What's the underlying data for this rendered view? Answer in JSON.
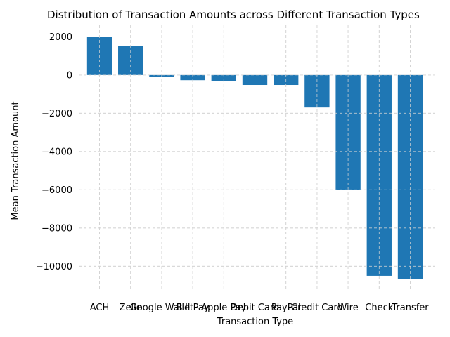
{
  "chart_data": {
    "type": "bar",
    "title": "Distribution of Transaction Amounts across Different Transaction Types",
    "xlabel": "Transaction Type",
    "ylabel": "Mean Transaction Amount",
    "categories": [
      "ACH",
      "Zelle",
      "Google Wallet",
      "Bill Pay",
      "Apple Pay",
      "Debit Card",
      "PayPal",
      "Credit Card",
      "Wire",
      "Check",
      "Transfer"
    ],
    "values": [
      1980,
      1500,
      -80,
      -270,
      -330,
      -520,
      -520,
      -1700,
      -6000,
      -10500,
      -10680
    ],
    "ylim": [
      -11200,
      2600
    ],
    "yticks": [
      2000,
      0,
      -2000,
      -4000,
      -6000,
      -8000,
      -10000
    ],
    "ytick_labels": [
      "2000",
      "0",
      "−2000",
      "−4000",
      "−6000",
      "−8000",
      "−10000"
    ],
    "grid": true,
    "bar_color": "#1f77b4"
  }
}
